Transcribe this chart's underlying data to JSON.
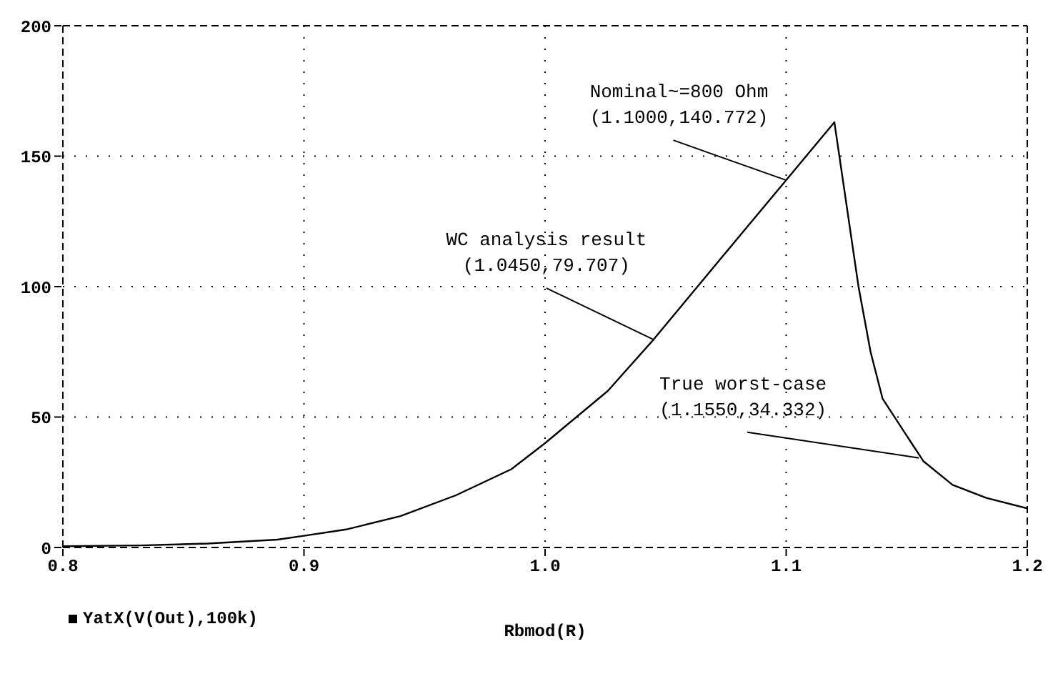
{
  "chart_data": {
    "type": "line",
    "xlabel": "Rbmod(R)",
    "x": [
      0.8,
      0.832,
      0.86,
      0.889,
      0.9,
      0.918,
      0.94,
      0.963,
      0.986,
      1.0,
      1.026,
      1.045,
      1.083,
      1.1,
      1.12,
      1.13,
      1.135,
      1.14,
      1.152,
      1.157,
      1.169,
      1.183,
      1.2
    ],
    "series": [
      {
        "name": "YatX(V(Out),100k)",
        "color": "#000000",
        "values": [
          0.5,
          0.8,
          1.5,
          3,
          4.5,
          7,
          12,
          20,
          30,
          40,
          60,
          79.7,
          122,
          140.8,
          163,
          100,
          75,
          57,
          40,
          33,
          24,
          19,
          15
        ]
      }
    ],
    "xlim": [
      0.8,
      1.2
    ],
    "xticks": [
      {
        "value": 0.8,
        "label": "0.8"
      },
      {
        "value": 0.9,
        "label": "0.9"
      },
      {
        "value": 1.0,
        "label": "1.0"
      },
      {
        "value": 1.1,
        "label": "1.1"
      },
      {
        "value": 1.2,
        "label": "1.2"
      }
    ],
    "ylim": [
      0,
      200
    ],
    "yticks": [
      0,
      50,
      100,
      150,
      200
    ],
    "annotations": [
      {
        "text": "Nominal~=800 Ohm\n(1.1000,140.772)",
        "x": 1.1,
        "y": 140.772
      },
      {
        "text": "WC analysis result\n(1.0450,79.707)",
        "x": 1.045,
        "y": 79.707
      },
      {
        "text": "True worst-case\n(1.1550,34.332)",
        "x": 1.155,
        "y": 34.332
      }
    ],
    "grid": true,
    "legend": "bottom left",
    "marker": "none",
    "line_style": "solid"
  }
}
